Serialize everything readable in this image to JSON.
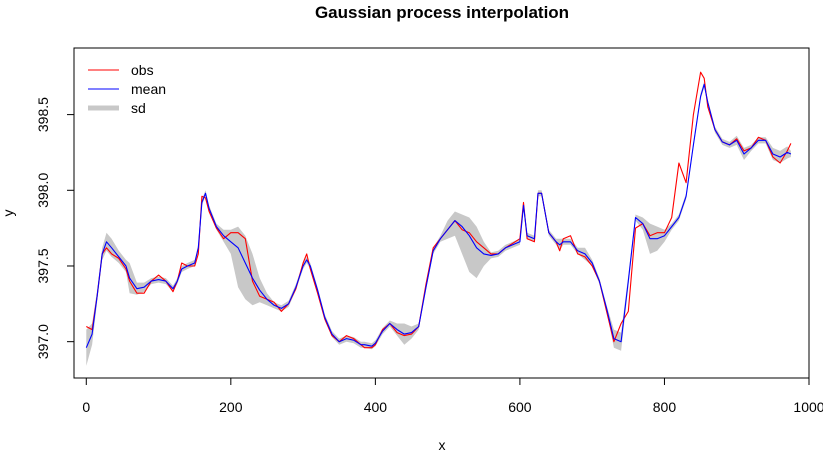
{
  "chart_data": {
    "type": "line",
    "title": "Gaussian process interpolation",
    "xlabel": "x",
    "ylabel": "y",
    "xlim": [
      -17,
      1000
    ],
    "ylim": [
      396.76,
      398.94
    ],
    "x_ticks": [
      0,
      200,
      400,
      600,
      800,
      1000
    ],
    "y_ticks": [
      397.0,
      397.5,
      398.0,
      398.5
    ],
    "legend_position": "top-left",
    "legend": [
      "obs",
      "mean",
      "sd"
    ],
    "colors": {
      "obs": "#ff0000",
      "mean": "#0000ff",
      "sd": "#c8c8c8"
    },
    "series": [
      {
        "name": "obs",
        "x": [
          0,
          8,
          15,
          22,
          28,
          35,
          45,
          55,
          60,
          70,
          80,
          90,
          100,
          110,
          120,
          126,
          132,
          140,
          150,
          155,
          160,
          165,
          170,
          180,
          190,
          200,
          210,
          220,
          230,
          240,
          250,
          260,
          270,
          280,
          290,
          300,
          305,
          310,
          320,
          330,
          340,
          350,
          360,
          370,
          380,
          385,
          395,
          400,
          410,
          420,
          430,
          440,
          450,
          460,
          470,
          480,
          490,
          500,
          510,
          520,
          530,
          540,
          550,
          560,
          570,
          580,
          590,
          600,
          605,
          610,
          620,
          625,
          630,
          640,
          650,
          655,
          660,
          670,
          680,
          690,
          700,
          710,
          720,
          730,
          740,
          750,
          760,
          770,
          780,
          790,
          800,
          810,
          820,
          830,
          840,
          850,
          855,
          860,
          870,
          880,
          890,
          900,
          910,
          920,
          930,
          940,
          950,
          960,
          970,
          975
        ],
        "y": [
          397.1,
          397.08,
          397.3,
          397.58,
          397.62,
          397.58,
          397.55,
          397.48,
          397.4,
          397.32,
          397.32,
          397.4,
          397.44,
          397.4,
          397.33,
          397.4,
          397.52,
          397.5,
          397.5,
          397.58,
          397.96,
          397.95,
          397.86,
          397.75,
          397.68,
          397.72,
          397.72,
          397.68,
          397.4,
          397.3,
          397.28,
          397.26,
          397.2,
          397.25,
          397.35,
          397.52,
          397.58,
          397.48,
          397.32,
          397.15,
          397.04,
          397.0,
          397.04,
          397.02,
          396.98,
          396.96,
          396.96,
          396.98,
          397.08,
          397.12,
          397.06,
          397.04,
          397.05,
          397.1,
          397.38,
          397.62,
          397.68,
          397.74,
          397.8,
          397.74,
          397.72,
          397.66,
          397.62,
          397.58,
          397.58,
          397.62,
          397.65,
          397.68,
          397.92,
          397.68,
          397.66,
          397.98,
          397.98,
          397.72,
          397.66,
          397.6,
          397.68,
          397.7,
          397.58,
          397.56,
          397.5,
          397.4,
          397.2,
          397.0,
          397.12,
          397.2,
          397.75,
          397.78,
          397.7,
          397.72,
          397.72,
          397.82,
          398.18,
          398.05,
          398.5,
          398.78,
          398.74,
          398.55,
          398.4,
          398.32,
          398.3,
          398.34,
          398.26,
          398.28,
          398.35,
          398.33,
          398.22,
          398.18,
          398.26,
          398.31
        ]
      },
      {
        "name": "mean",
        "x": [
          0,
          8,
          15,
          22,
          28,
          35,
          45,
          55,
          60,
          70,
          80,
          90,
          100,
          110,
          120,
          126,
          132,
          140,
          150,
          155,
          160,
          165,
          170,
          180,
          190,
          200,
          210,
          220,
          230,
          240,
          250,
          260,
          270,
          280,
          290,
          300,
          305,
          310,
          320,
          330,
          340,
          350,
          360,
          370,
          380,
          385,
          395,
          400,
          410,
          420,
          430,
          440,
          450,
          460,
          470,
          480,
          490,
          500,
          510,
          520,
          530,
          540,
          550,
          560,
          570,
          580,
          590,
          600,
          605,
          610,
          620,
          625,
          630,
          640,
          650,
          655,
          660,
          670,
          680,
          690,
          700,
          710,
          720,
          730,
          740,
          750,
          760,
          770,
          780,
          790,
          800,
          810,
          820,
          830,
          840,
          850,
          855,
          860,
          870,
          880,
          890,
          900,
          910,
          920,
          930,
          940,
          950,
          960,
          970,
          975
        ],
        "y": [
          396.96,
          397.05,
          397.3,
          397.58,
          397.66,
          397.62,
          397.56,
          397.5,
          397.42,
          397.35,
          397.36,
          397.4,
          397.41,
          397.4,
          397.35,
          397.4,
          397.48,
          397.5,
          397.52,
          397.62,
          397.92,
          397.98,
          397.88,
          397.76,
          397.7,
          397.66,
          397.62,
          397.52,
          397.42,
          397.34,
          397.28,
          397.24,
          397.22,
          397.25,
          397.36,
          397.5,
          397.54,
          397.5,
          397.34,
          397.16,
          397.05,
          397.0,
          397.02,
          397.01,
          396.98,
          396.98,
          396.97,
          396.99,
          397.07,
          397.12,
          397.08,
          397.05,
          397.06,
          397.1,
          397.36,
          397.6,
          397.68,
          397.74,
          397.8,
          397.76,
          397.7,
          397.62,
          397.58,
          397.57,
          397.58,
          397.62,
          397.64,
          397.66,
          397.9,
          397.7,
          397.68,
          397.98,
          397.98,
          397.72,
          397.66,
          397.64,
          397.66,
          397.66,
          397.6,
          397.58,
          397.52,
          397.4,
          397.22,
          397.02,
          397.0,
          397.4,
          397.82,
          397.78,
          397.68,
          397.68,
          397.7,
          397.76,
          397.82,
          397.96,
          398.3,
          398.62,
          398.7,
          398.58,
          398.4,
          398.32,
          398.3,
          398.33,
          398.24,
          398.28,
          398.33,
          398.33,
          398.24,
          398.22,
          398.25,
          398.24
        ]
      },
      {
        "name": "sd",
        "x": [
          0,
          8,
          15,
          22,
          28,
          35,
          45,
          55,
          60,
          70,
          80,
          90,
          100,
          110,
          120,
          126,
          132,
          140,
          150,
          155,
          160,
          165,
          170,
          180,
          190,
          200,
          210,
          220,
          230,
          240,
          250,
          260,
          270,
          280,
          290,
          300,
          305,
          310,
          320,
          330,
          340,
          350,
          360,
          370,
          380,
          385,
          395,
          400,
          410,
          420,
          430,
          440,
          450,
          460,
          470,
          480,
          490,
          500,
          510,
          520,
          530,
          540,
          550,
          560,
          570,
          580,
          590,
          600,
          605,
          610,
          620,
          625,
          630,
          640,
          650,
          655,
          660,
          670,
          680,
          690,
          700,
          710,
          720,
          730,
          740,
          750,
          760,
          770,
          780,
          790,
          800,
          810,
          820,
          830,
          840,
          850,
          855,
          860,
          870,
          880,
          890,
          900,
          910,
          920,
          930,
          940,
          950,
          960,
          970,
          975
        ],
        "lower": [
          396.84,
          396.98,
          397.26,
          397.54,
          397.6,
          397.56,
          397.52,
          397.46,
          397.32,
          397.31,
          397.33,
          397.38,
          397.39,
          397.38,
          397.33,
          397.38,
          397.46,
          397.48,
          397.5,
          397.6,
          397.9,
          397.96,
          397.86,
          397.74,
          397.66,
          397.58,
          397.36,
          397.28,
          397.24,
          397.26,
          397.24,
          397.22,
          397.2,
          397.23,
          397.34,
          397.48,
          397.52,
          397.48,
          397.32,
          397.14,
          397.03,
          396.98,
          397.0,
          396.99,
          396.96,
          396.96,
          396.95,
          396.97,
          397.05,
          397.1,
          397.04,
          396.98,
          397.02,
          397.08,
          397.34,
          397.58,
          397.66,
          397.68,
          397.7,
          397.58,
          397.46,
          397.42,
          397.5,
          397.55,
          397.56,
          397.6,
          397.62,
          397.64,
          397.88,
          397.68,
          397.66,
          397.96,
          397.96,
          397.7,
          397.64,
          397.6,
          397.64,
          397.64,
          397.58,
          397.54,
          397.5,
          397.38,
          397.2,
          396.96,
          396.94,
          397.36,
          397.8,
          397.74,
          397.58,
          397.6,
          397.66,
          397.74,
          397.8,
          397.94,
          398.28,
          398.6,
          398.68,
          398.56,
          398.38,
          398.3,
          398.28,
          398.3,
          398.2,
          398.26,
          398.31,
          398.31,
          398.2,
          398.18,
          398.21,
          398.22
        ],
        "upper": [
          397.08,
          397.12,
          397.34,
          397.62,
          397.72,
          397.68,
          397.6,
          397.54,
          397.52,
          397.39,
          397.39,
          397.42,
          397.43,
          397.42,
          397.37,
          397.42,
          397.5,
          397.52,
          397.54,
          397.64,
          397.94,
          398.0,
          397.9,
          397.78,
          397.74,
          397.74,
          397.76,
          397.7,
          397.58,
          397.42,
          397.32,
          397.26,
          397.24,
          397.27,
          397.38,
          397.52,
          397.56,
          397.52,
          397.36,
          397.18,
          397.07,
          397.02,
          397.04,
          397.03,
          397.0,
          397.0,
          396.99,
          397.01,
          397.09,
          397.14,
          397.12,
          397.12,
          397.1,
          397.12,
          397.38,
          397.62,
          397.7,
          397.8,
          397.86,
          397.84,
          397.82,
          397.76,
          397.66,
          397.59,
          397.6,
          397.64,
          397.66,
          397.68,
          397.92,
          397.72,
          397.7,
          398.0,
          398.0,
          397.74,
          397.68,
          397.68,
          397.68,
          397.68,
          397.62,
          397.62,
          397.54,
          397.42,
          397.24,
          397.08,
          397.06,
          397.44,
          397.84,
          397.82,
          397.78,
          397.76,
          397.74,
          397.78,
          397.84,
          397.98,
          398.32,
          398.64,
          398.72,
          398.6,
          398.42,
          398.34,
          398.32,
          398.36,
          398.28,
          398.3,
          398.35,
          398.35,
          398.28,
          398.26,
          398.29,
          398.26
        ]
      }
    ]
  }
}
